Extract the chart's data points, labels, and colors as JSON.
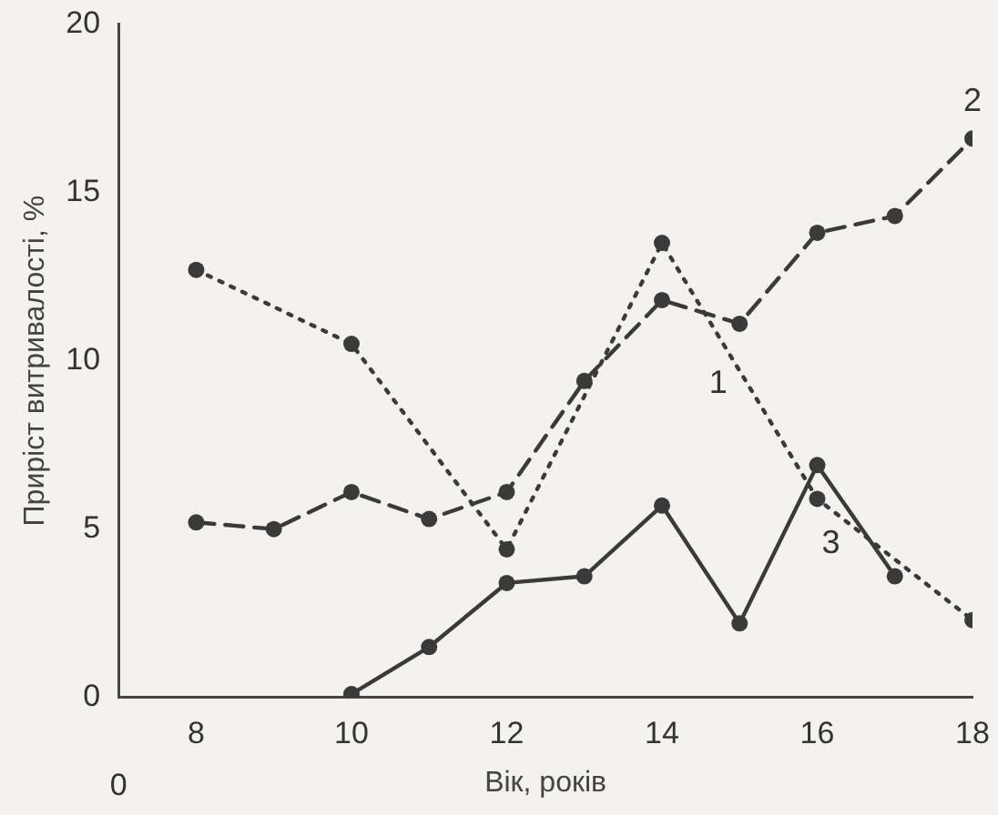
{
  "chart_data": {
    "type": "line",
    "xlabel": "Вік, років",
    "ylabel": "Приріст витривалості, %",
    "xlim": [
      7,
      18
    ],
    "xticks": [
      8,
      10,
      12,
      14,
      16,
      18
    ],
    "ylim": [
      0,
      20
    ],
    "yticks": [
      0,
      5,
      10,
      15,
      20
    ],
    "grid": false,
    "legend": false,
    "marker": "circle",
    "series": [
      {
        "name": "1",
        "color": "#3a3a3a",
        "line_style": "dotted",
        "x": [
          8,
          10,
          12,
          14,
          16,
          18
        ],
        "values": [
          12.7,
          10.5,
          4.4,
          13.5,
          5.9,
          2.3
        ]
      },
      {
        "name": "2",
        "color": "#3a3a3a",
        "line_style": "dashed",
        "x": [
          8,
          9,
          10,
          11,
          12,
          13,
          14,
          15,
          16,
          17,
          18
        ],
        "values": [
          5.2,
          5.0,
          6.1,
          5.3,
          6.1,
          9.4,
          11.8,
          11.1,
          13.8,
          14.3,
          16.6
        ]
      },
      {
        "name": "3",
        "color": "#3a3a3a",
        "line_style": "solid",
        "x": [
          10,
          11,
          12,
          13,
          14,
          15,
          16,
          17
        ],
        "values": [
          0.1,
          1.5,
          3.4,
          3.6,
          5.7,
          2.2,
          6.9,
          3.6
        ]
      }
    ],
    "annotations": [
      "0"
    ]
  }
}
